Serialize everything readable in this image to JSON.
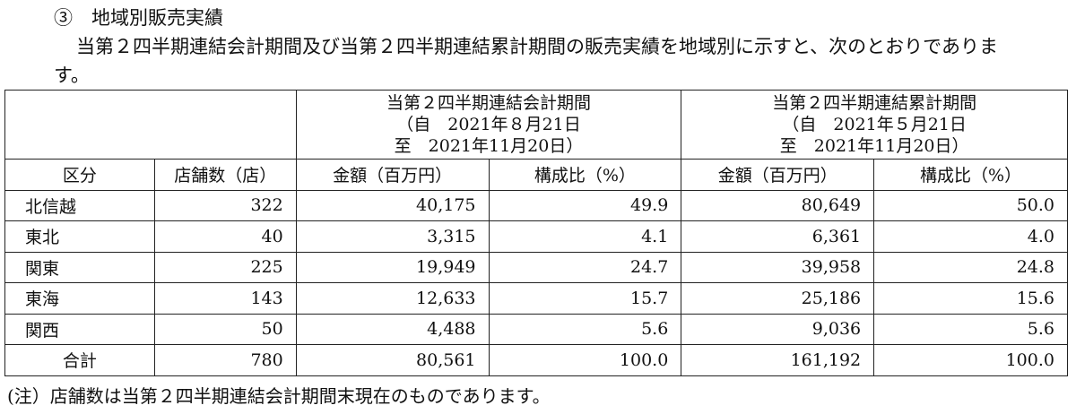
{
  "heading": "③　地域別販売実績",
  "paragraph_lines": [
    "当第２四半期連結会計期間及び当第２四半期連結累計期間の販売実績を地域別に示すと、次のとおりでありま",
    "す。"
  ],
  "table": {
    "period_headers": [
      [
        "当第２四半期連結会計期間",
        "（自　2021年８月21日",
        "至　2021年11月20日）"
      ],
      [
        "当第２四半期連結累計期間",
        "（自　2021年５月21日",
        "至　2021年11月20日）"
      ]
    ],
    "columns": [
      "区分",
      "店舗数（店）",
      "金額（百万円）",
      "構成比（%）",
      "金額（百万円）",
      "構成比（%）"
    ],
    "rows": [
      [
        "北信越",
        "322",
        "40,175",
        "49.9",
        "80,649",
        "50.0"
      ],
      [
        "東北",
        "40",
        "3,315",
        "4.1",
        "6,361",
        "4.0"
      ],
      [
        "関東",
        "225",
        "19,949",
        "24.7",
        "39,958",
        "24.8"
      ],
      [
        "東海",
        "143",
        "12,633",
        "15.7",
        "25,186",
        "15.6"
      ],
      [
        "関西",
        "50",
        "4,488",
        "5.6",
        "9,036",
        "5.6"
      ],
      [
        "合計",
        "780",
        "80,561",
        "100.0",
        "161,192",
        "100.0"
      ]
    ]
  },
  "note": "(注）店舗数は当第２四半期連結会計期間末現在のものであります。"
}
